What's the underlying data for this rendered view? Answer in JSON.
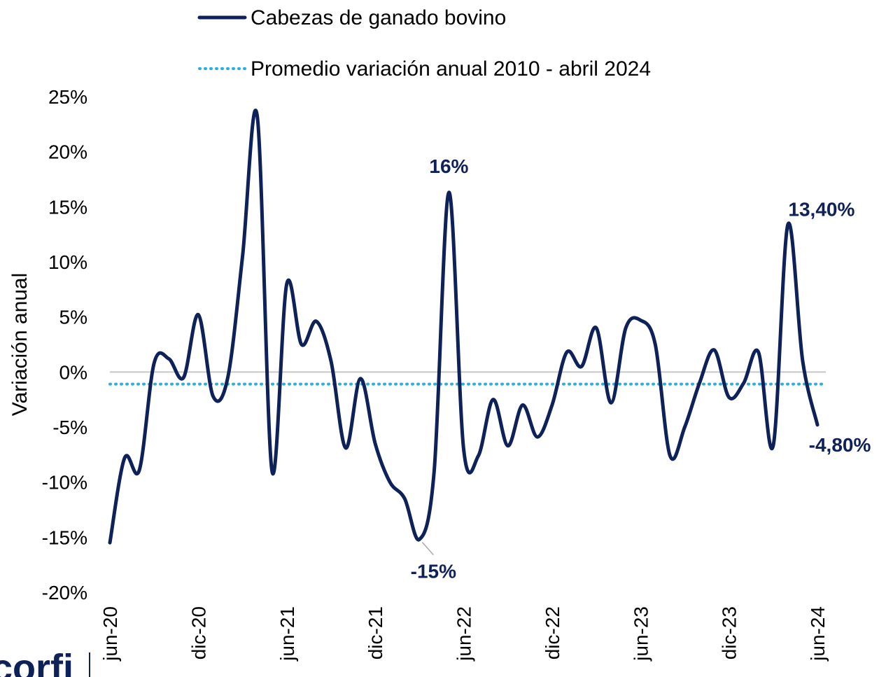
{
  "chart_data": {
    "type": "line",
    "y_label": "Variación anual",
    "logo": "corfi",
    "categories": [
      "jun-20",
      null,
      null,
      null,
      null,
      null,
      "dic-20",
      null,
      null,
      null,
      null,
      null,
      "jun-21",
      null,
      null,
      null,
      null,
      null,
      "dic-21",
      null,
      null,
      null,
      null,
      null,
      "jun-22",
      null,
      null,
      null,
      null,
      null,
      "dic-22",
      null,
      null,
      null,
      null,
      null,
      "jun-23",
      null,
      null,
      null,
      null,
      null,
      "dic-23",
      null,
      null,
      null,
      null,
      null,
      "jun-24"
    ],
    "series": [
      {
        "name": "Cabezas de ganado bovino",
        "color": "#0e2159",
        "values": [
          -15.5,
          -7.8,
          -8.9,
          0.8,
          1.2,
          -0.5,
          5.2,
          -2.2,
          -0.5,
          10.5,
          23.2,
          -9.0,
          8.0,
          2.5,
          4.6,
          1.0,
          -6.9,
          -0.6,
          -6.5,
          -10.0,
          -11.5,
          -15.2,
          -9.0,
          16.3,
          -7.0,
          -7.6,
          -2.5,
          -6.7,
          -3.0,
          -5.9,
          -3.0,
          1.8,
          0.5,
          4.0,
          -2.8,
          4.0,
          4.7,
          2.5,
          -7.6,
          -5.0,
          -1.0,
          2.0,
          -2.3,
          -1.0,
          1.8,
          -6.7,
          13.4,
          1.0,
          -4.8
        ],
        "value_labels": [
          null,
          null,
          null,
          null,
          null,
          null,
          null,
          null,
          null,
          null,
          null,
          null,
          null,
          null,
          null,
          null,
          null,
          null,
          null,
          null,
          null,
          "-15%",
          null,
          "16%",
          null,
          null,
          null,
          null,
          null,
          null,
          null,
          null,
          null,
          null,
          null,
          null,
          null,
          null,
          null,
          null,
          null,
          null,
          null,
          null,
          null,
          null,
          "13,40%",
          null,
          "-4,80%"
        ]
      }
    ],
    "average": {
      "name": "Promedio variación anual 2010 - abril 2024",
      "color": "#1fb3e6",
      "value": -1.1
    },
    "ylim": [
      -20,
      25
    ],
    "yticks": [
      {
        "value": 25,
        "label": "25%"
      },
      {
        "value": 20,
        "label": "20%"
      },
      {
        "value": 15,
        "label": "15%"
      },
      {
        "value": 10,
        "label": "10%"
      },
      {
        "value": 5,
        "label": "5%"
      },
      {
        "value": 0,
        "label": "0%"
      },
      {
        "value": -5,
        "label": "-5%"
      },
      {
        "value": -10,
        "label": "-10%"
      },
      {
        "value": -15,
        "label": "-15%"
      },
      {
        "value": -20,
        "label": "-20%"
      }
    ]
  }
}
